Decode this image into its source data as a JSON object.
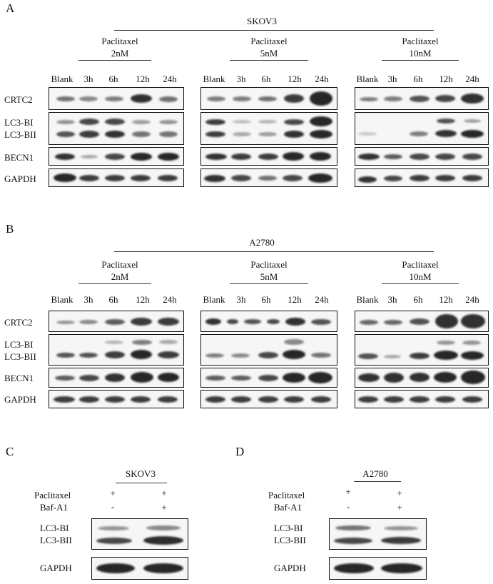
{
  "panels": {
    "A": {
      "label": "A",
      "cell_line": "SKOV3"
    },
    "B": {
      "label": "B",
      "cell_line": "A2780"
    },
    "C": {
      "label": "C",
      "cell_line": "SKOV3"
    },
    "D": {
      "label": "D",
      "cell_line": "A2780"
    }
  },
  "groups": [
    {
      "drug": "Paclitaxel",
      "dose": "2nM"
    },
    {
      "drug": "Paclitaxel",
      "dose": "5nM"
    },
    {
      "drug": "Paclitaxel",
      "dose": "10nM"
    }
  ],
  "lanes": [
    "Blank",
    "3h",
    "6h",
    "12h",
    "24h"
  ],
  "rows": {
    "crtc2": "CRTC2",
    "lc3bi": "LC3-BI",
    "lc3bii": "LC3-BII",
    "becn1": "BECN1",
    "gapdh": "GAPDH"
  },
  "treatment": {
    "paclitaxel_label": "Paclitaxel",
    "bafa1_label": "Baf-A1",
    "paclitaxel": [
      "+",
      "+"
    ],
    "bafa1": [
      "-",
      "+"
    ]
  }
}
